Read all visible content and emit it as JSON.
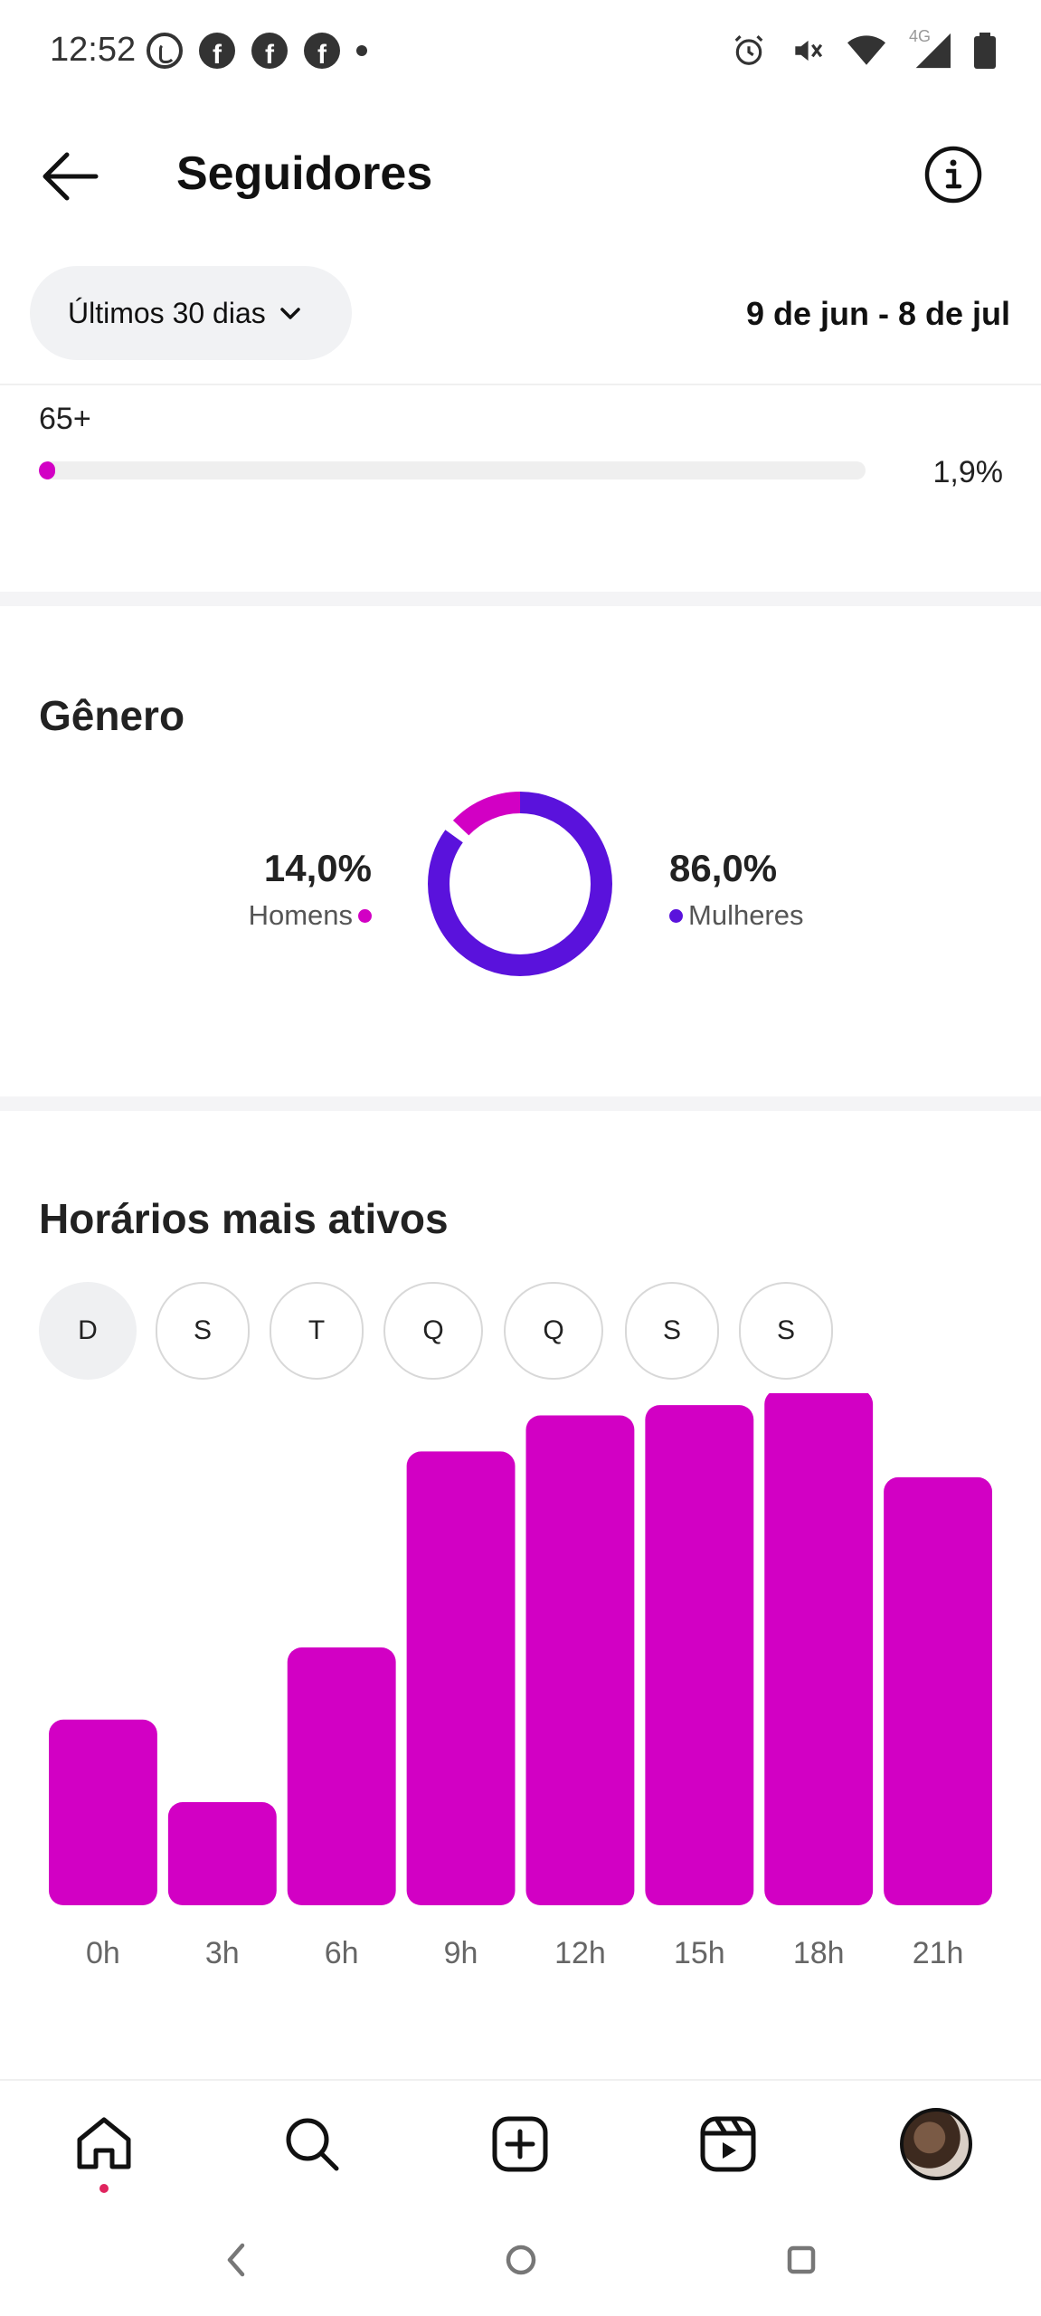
{
  "status_bar": {
    "time": "12:52",
    "left_icons": [
      "whatsapp-icon",
      "facebook-icon",
      "facebook-icon",
      "facebook-icon",
      "dot-icon"
    ],
    "right_icons": [
      "alarm-icon",
      "mute-icon",
      "wifi-icon",
      "4g-signal-icon",
      "battery-icon"
    ],
    "network_label": "4G"
  },
  "header": {
    "title": "Seguidores",
    "back_icon": "arrow-left-icon",
    "info_icon": "info-icon"
  },
  "filter": {
    "period_label": "Últimos 30 dias",
    "date_range": "9 de jun - 8 de jul"
  },
  "age": {
    "label": "65+",
    "percent_label": "1,9%",
    "percent_value": 1.9
  },
  "gender": {
    "title": "Gênero",
    "men": {
      "percent": "14,0%",
      "label": "Homens",
      "value": 14.0,
      "color": "#d200c4"
    },
    "women": {
      "percent": "86,0%",
      "label": "Mulheres",
      "value": 86.0,
      "color": "#5a12dc"
    }
  },
  "active_hours": {
    "title": "Horários mais ativos",
    "days": [
      "D",
      "S",
      "T",
      "Q",
      "Q",
      "S",
      "S"
    ],
    "selected_day_index": 0
  },
  "chart_data": {
    "type": "bar",
    "categories": [
      "0h",
      "3h",
      "6h",
      "9h",
      "12h",
      "15h",
      "18h",
      "21h"
    ],
    "values": [
      36,
      20,
      50,
      88,
      95,
      97,
      100,
      83
    ],
    "ylim": [
      0,
      100
    ],
    "grid": false,
    "bar_color": "#d200c4"
  },
  "bottom_nav": {
    "items": [
      "home-icon",
      "search-icon",
      "create-icon",
      "reels-icon",
      "profile-avatar"
    ],
    "active_index": 0,
    "notification_color": "#e0245e"
  },
  "system_nav": {
    "items": [
      "back-icon",
      "home-circle-icon",
      "recents-icon"
    ]
  }
}
